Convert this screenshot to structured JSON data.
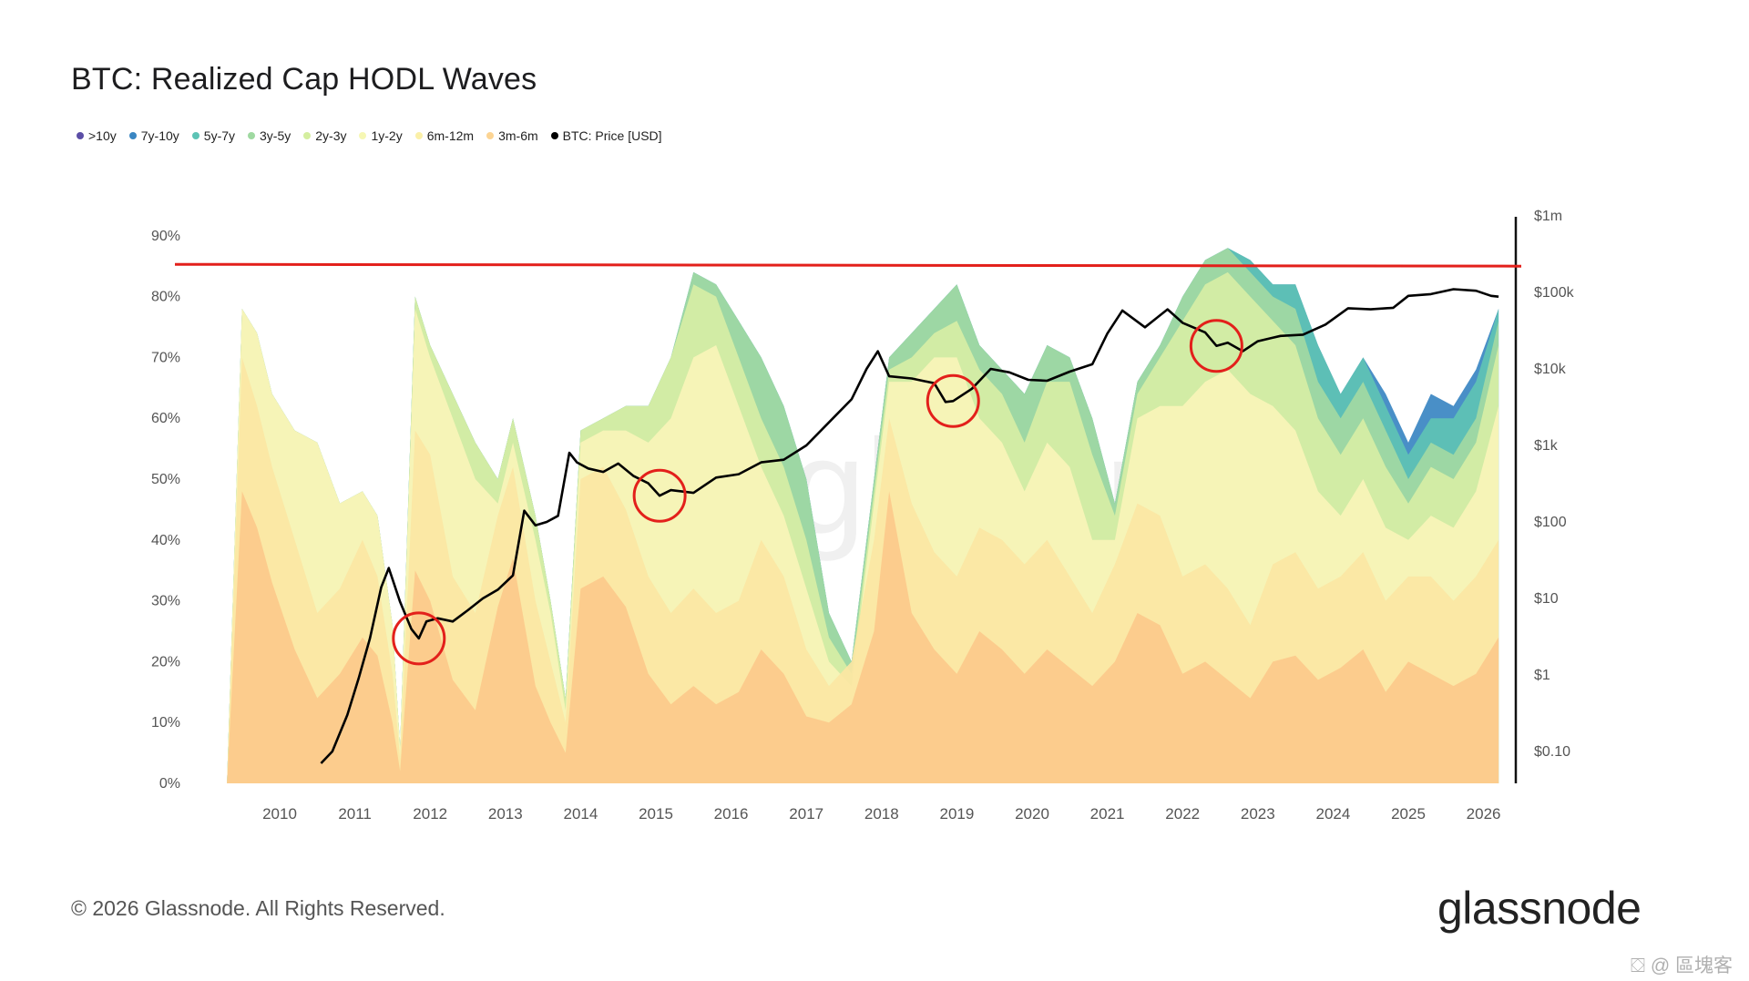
{
  "title": "BTC: Realized Cap HODL Waves",
  "footer": "© 2026 Glassnode. All Rights Reserved.",
  "brand": "glassnode",
  "background_watermark": "glassnode",
  "corner_watermark": "⛋ @ 區塊客",
  "chart_data": {
    "type": "area",
    "title": "BTC: Realized Cap HODL Waves",
    "legend": [
      {
        "name": ">10y",
        "color": "#5b4ea6"
      },
      {
        "name": "7y-10y",
        "color": "#3a86c2"
      },
      {
        "name": "5y-7y",
        "color": "#5cc3b5"
      },
      {
        "name": "3y-5y",
        "color": "#9fd9a1"
      },
      {
        "name": "2y-3y",
        "color": "#d4ee9f"
      },
      {
        "name": "1y-2y",
        "color": "#f6f7b4"
      },
      {
        "name": "6m-12m",
        "color": "#fbf0a8"
      },
      {
        "name": "3m-6m",
        "color": "#fcd493"
      },
      {
        "name": "BTC: Price [USD]",
        "color": "#000000"
      }
    ],
    "legend_placement": "top-left",
    "x_ticks": [
      "2010",
      "2011",
      "2012",
      "2013",
      "2014",
      "2015",
      "2016",
      "2017",
      "2018",
      "2019",
      "2020",
      "2021",
      "2022",
      "2023",
      "2024",
      "2025",
      "2026"
    ],
    "y_left_ticks": [
      "0%",
      "10%",
      "20%",
      "30%",
      "40%",
      "50%",
      "60%",
      "70%",
      "80%",
      "90%"
    ],
    "y_left_range": [
      0,
      90
    ],
    "y_right_ticks": [
      "$0.10",
      "$1",
      "$10",
      "$100",
      "$1k",
      "$10k",
      "$100k",
      "$1m"
    ],
    "y_right_range_log10": [
      -1,
      6
    ],
    "y_right_scale": "log",
    "reference_line_pct": 85,
    "circle_annotations_years": [
      2011.85,
      2015.05,
      2018.95,
      2022.45
    ],
    "series": [
      {
        "name": "3m-6m",
        "color": "#fcc98b",
        "x": [
          2009.3,
          2009.5,
          2009.7,
          2009.9,
          2010.2,
          2010.5,
          2010.8,
          2011.1,
          2011.3,
          2011.5,
          2011.6,
          2011.8,
          2012.0,
          2012.3,
          2012.6,
          2012.9,
          2013.1,
          2013.4,
          2013.6,
          2013.8,
          2014.0,
          2014.3,
          2014.6,
          2014.9,
          2015.2,
          2015.5,
          2015.8,
          2016.1,
          2016.4,
          2016.7,
          2017.0,
          2017.3,
          2017.6,
          2017.9,
          2018.1,
          2018.4,
          2018.7,
          2019.0,
          2019.3,
          2019.6,
          2019.9,
          2020.2,
          2020.5,
          2020.8,
          2021.1,
          2021.4,
          2021.7,
          2022.0,
          2022.3,
          2022.6,
          2022.9,
          2023.2,
          2023.5,
          2023.8,
          2024.1,
          2024.4,
          2024.7,
          2025.0,
          2025.3,
          2025.6,
          2025.9,
          2026.2
        ],
        "values": [
          0,
          48,
          42,
          33,
          22,
          14,
          18,
          24,
          21,
          10,
          2,
          35,
          30,
          17,
          12,
          29,
          37,
          16,
          10,
          5,
          32,
          34,
          29,
          18,
          13,
          16,
          13,
          15,
          22,
          18,
          11,
          10,
          13,
          25,
          48,
          28,
          22,
          18,
          25,
          22,
          18,
          22,
          19,
          16,
          20,
          28,
          26,
          18,
          20,
          17,
          14,
          20,
          21,
          17,
          19,
          22,
          15,
          20,
          18,
          16,
          18,
          24
        ]
      },
      {
        "name": "6m-12m",
        "color": "#fbe6a3",
        "x": [
          2009.3,
          2009.5,
          2009.7,
          2009.9,
          2010.2,
          2010.5,
          2010.8,
          2011.1,
          2011.3,
          2011.5,
          2011.6,
          2011.8,
          2012.0,
          2012.3,
          2012.6,
          2012.9,
          2013.1,
          2013.4,
          2013.6,
          2013.8,
          2014.0,
          2014.3,
          2014.6,
          2014.9,
          2015.2,
          2015.5,
          2015.8,
          2016.1,
          2016.4,
          2016.7,
          2017.0,
          2017.3,
          2017.6,
          2017.9,
          2018.1,
          2018.4,
          2018.7,
          2019.0,
          2019.3,
          2019.6,
          2019.9,
          2020.2,
          2020.5,
          2020.8,
          2021.1,
          2021.4,
          2021.7,
          2022.0,
          2022.3,
          2022.6,
          2022.9,
          2023.2,
          2023.5,
          2023.8,
          2024.1,
          2024.4,
          2024.7,
          2025.0,
          2025.3,
          2025.6,
          2025.9,
          2026.2
        ],
        "values": [
          0,
          70,
          62,
          52,
          40,
          28,
          32,
          40,
          34,
          18,
          4,
          58,
          54,
          34,
          28,
          44,
          52,
          30,
          20,
          10,
          50,
          52,
          45,
          34,
          28,
          32,
          28,
          30,
          40,
          34,
          22,
          16,
          20,
          40,
          60,
          46,
          38,
          34,
          42,
          40,
          36,
          40,
          34,
          28,
          36,
          46,
          44,
          34,
          36,
          32,
          26,
          36,
          38,
          32,
          34,
          38,
          30,
          34,
          34,
          30,
          34,
          40
        ]
      },
      {
        "name": "1y-2y",
        "color": "#f8f4b8",
        "x": [
          2009.3,
          2009.5,
          2009.7,
          2009.9,
          2010.2,
          2010.5,
          2010.8,
          2011.1,
          2011.3,
          2011.5,
          2011.6,
          2011.8,
          2012.0,
          2012.3,
          2012.6,
          2012.9,
          2013.1,
          2013.4,
          2013.6,
          2013.8,
          2014.0,
          2014.3,
          2014.6,
          2014.9,
          2015.2,
          2015.5,
          2015.8,
          2016.1,
          2016.4,
          2016.7,
          2017.0,
          2017.3,
          2017.6,
          2017.9,
          2018.1,
          2018.4,
          2018.7,
          2019.0,
          2019.3,
          2019.6,
          2019.9,
          2020.2,
          2020.5,
          2020.8,
          2021.1,
          2021.4,
          2021.7,
          2022.0,
          2022.3,
          2022.6,
          2022.9,
          2023.2,
          2023.5,
          2023.8,
          2024.1,
          2024.4,
          2024.7,
          2025.0,
          2025.3,
          2025.6,
          2025.9,
          2026.2
        ],
        "values": [
          0,
          78,
          74,
          64,
          58,
          56,
          46,
          48,
          44,
          26,
          6,
          78,
          70,
          60,
          50,
          46,
          56,
          40,
          28,
          12,
          56,
          58,
          58,
          56,
          60,
          70,
          72,
          62,
          52,
          44,
          32,
          20,
          16,
          46,
          66,
          66,
          70,
          70,
          60,
          56,
          48,
          56,
          52,
          40,
          40,
          60,
          62,
          62,
          66,
          68,
          64,
          62,
          58,
          48,
          44,
          50,
          42,
          40,
          44,
          42,
          48,
          62
        ]
      },
      {
        "name": "2y-3y",
        "color": "#d7eea5",
        "x": [
          2009.3,
          2009.5,
          2009.7,
          2009.9,
          2010.2,
          2010.5,
          2010.8,
          2011.1,
          2011.3,
          2011.5,
          2011.6,
          2011.8,
          2012.0,
          2012.3,
          2012.6,
          2012.9,
          2013.1,
          2013.4,
          2013.6,
          2013.8,
          2014.0,
          2014.3,
          2014.6,
          2014.9,
          2015.2,
          2015.5,
          2015.8,
          2016.1,
          2016.4,
          2016.7,
          2017.0,
          2017.3,
          2017.6,
          2017.9,
          2018.1,
          2018.4,
          2018.7,
          2019.0,
          2019.3,
          2019.6,
          2019.9,
          2020.2,
          2020.5,
          2020.8,
          2021.1,
          2021.4,
          2021.7,
          2022.0,
          2022.3,
          2022.6,
          2022.9,
          2023.2,
          2023.5,
          2023.8,
          2024.1,
          2024.4,
          2024.7,
          2025.0,
          2025.3,
          2025.6,
          2025.9,
          2026.2
        ],
        "values": [
          0,
          78,
          74,
          64,
          58,
          56,
          46,
          48,
          44,
          26,
          6,
          80,
          72,
          64,
          56,
          50,
          60,
          44,
          30,
          14,
          58,
          60,
          62,
          62,
          70,
          82,
          80,
          70,
          60,
          52,
          40,
          24,
          18,
          48,
          68,
          70,
          74,
          76,
          68,
          64,
          56,
          66,
          66,
          54,
          44,
          64,
          70,
          76,
          82,
          84,
          80,
          76,
          72,
          60,
          54,
          60,
          52,
          46,
          52,
          50,
          56,
          72
        ]
      },
      {
        "name": "3y-5y",
        "color": "#a3d9a3",
        "x": [
          2009.3,
          2009.5,
          2009.7,
          2009.9,
          2010.2,
          2010.5,
          2010.8,
          2011.1,
          2011.3,
          2011.5,
          2011.6,
          2011.8,
          2012.0,
          2012.3,
          2012.6,
          2012.9,
          2013.1,
          2013.4,
          2013.6,
          2013.8,
          2014.0,
          2014.3,
          2014.6,
          2014.9,
          2015.2,
          2015.5,
          2015.8,
          2016.1,
          2016.4,
          2016.7,
          2017.0,
          2017.3,
          2017.6,
          2017.9,
          2018.1,
          2018.4,
          2018.7,
          2019.0,
          2019.3,
          2019.6,
          2019.9,
          2020.2,
          2020.5,
          2020.8,
          2021.1,
          2021.4,
          2021.7,
          2022.0,
          2022.3,
          2022.6,
          2022.9,
          2023.2,
          2023.5,
          2023.8,
          2024.1,
          2024.4,
          2024.7,
          2025.0,
          2025.3,
          2025.6,
          2025.9,
          2026.2
        ],
        "values": [
          0,
          78,
          74,
          64,
          58,
          56,
          46,
          48,
          44,
          26,
          6,
          80,
          72,
          64,
          56,
          50,
          60,
          44,
          30,
          14,
          58,
          60,
          62,
          62,
          70,
          84,
          82,
          76,
          70,
          62,
          50,
          28,
          20,
          50,
          70,
          74,
          78,
          82,
          72,
          68,
          64,
          72,
          70,
          60,
          46,
          66,
          72,
          80,
          86,
          88,
          84,
          80,
          78,
          66,
          60,
          66,
          58,
          50,
          56,
          54,
          60,
          76
        ]
      },
      {
        "name": "5y-7y",
        "color": "#5fc3b4",
        "x": [
          2009.3,
          2009.5,
          2009.7,
          2009.9,
          2010.2,
          2010.5,
          2010.8,
          2011.1,
          2011.3,
          2011.5,
          2011.6,
          2011.8,
          2012.0,
          2012.3,
          2012.6,
          2012.9,
          2013.1,
          2013.4,
          2013.6,
          2013.8,
          2014.0,
          2014.3,
          2014.6,
          2014.9,
          2015.2,
          2015.5,
          2015.8,
          2016.1,
          2016.4,
          2016.7,
          2017.0,
          2017.3,
          2017.6,
          2017.9,
          2018.1,
          2018.4,
          2018.7,
          2019.0,
          2019.3,
          2019.6,
          2019.9,
          2020.2,
          2020.5,
          2020.8,
          2021.1,
          2021.4,
          2021.7,
          2022.0,
          2022.3,
          2022.6,
          2022.9,
          2023.2,
          2023.5,
          2023.8,
          2024.1,
          2024.4,
          2024.7,
          2025.0,
          2025.3,
          2025.6,
          2025.9,
          2026.2
        ],
        "values": [
          0,
          78,
          74,
          64,
          58,
          56,
          46,
          48,
          44,
          26,
          6,
          80,
          72,
          64,
          56,
          50,
          60,
          44,
          30,
          14,
          58,
          60,
          62,
          62,
          70,
          84,
          82,
          76,
          70,
          62,
          50,
          28,
          20,
          50,
          70,
          74,
          78,
          82,
          72,
          68,
          64,
          72,
          70,
          60,
          46,
          66,
          72,
          80,
          86,
          88,
          86,
          82,
          82,
          72,
          64,
          70,
          62,
          54,
          60,
          60,
          66,
          78
        ]
      },
      {
        "name": "7y-10y",
        "color": "#3a86c2",
        "x": [
          2009.3,
          2009.5,
          2009.7,
          2009.9,
          2010.2,
          2010.5,
          2010.8,
          2011.1,
          2011.3,
          2011.5,
          2011.6,
          2011.8,
          2012.0,
          2012.3,
          2012.6,
          2012.9,
          2013.1,
          2013.4,
          2013.6,
          2013.8,
          2014.0,
          2014.3,
          2014.6,
          2014.9,
          2015.2,
          2015.5,
          2015.8,
          2016.1,
          2016.4,
          2016.7,
          2017.0,
          2017.3,
          2017.6,
          2017.9,
          2018.1,
          2018.4,
          2018.7,
          2019.0,
          2019.3,
          2019.6,
          2019.9,
          2020.2,
          2020.5,
          2020.8,
          2021.1,
          2021.4,
          2021.7,
          2022.0,
          2022.3,
          2022.6,
          2022.9,
          2023.2,
          2023.5,
          2023.8,
          2024.1,
          2024.4,
          2024.7,
          2025.0,
          2025.3,
          2025.6,
          2025.9,
          2026.2
        ],
        "values": [
          0,
          78,
          74,
          64,
          58,
          56,
          46,
          48,
          44,
          26,
          6,
          80,
          72,
          64,
          56,
          50,
          60,
          44,
          30,
          14,
          58,
          60,
          62,
          62,
          70,
          84,
          82,
          76,
          70,
          62,
          50,
          28,
          20,
          50,
          70,
          74,
          78,
          82,
          72,
          68,
          64,
          72,
          70,
          60,
          46,
          66,
          72,
          80,
          86,
          88,
          86,
          82,
          82,
          72,
          64,
          70,
          64,
          56,
          64,
          62,
          68,
          78
        ]
      }
    ],
    "price": {
      "name": "BTC: Price [USD]",
      "x": [
        2010.55,
        2010.7,
        2010.9,
        2011.05,
        2011.2,
        2011.35,
        2011.45,
        2011.6,
        2011.75,
        2011.85,
        2011.95,
        2012.1,
        2012.3,
        2012.5,
        2012.7,
        2012.9,
        2013.1,
        2013.25,
        2013.4,
        2013.55,
        2013.7,
        2013.85,
        2013.95,
        2014.1,
        2014.3,
        2014.5,
        2014.7,
        2014.9,
        2015.05,
        2015.2,
        2015.5,
        2015.8,
        2016.1,
        2016.4,
        2016.7,
        2017.0,
        2017.3,
        2017.6,
        2017.8,
        2017.95,
        2018.1,
        2018.4,
        2018.7,
        2018.85,
        2018.95,
        2019.2,
        2019.45,
        2019.7,
        2019.95,
        2020.2,
        2020.5,
        2020.8,
        2021.0,
        2021.2,
        2021.5,
        2021.8,
        2022.0,
        2022.3,
        2022.45,
        2022.6,
        2022.8,
        2023.0,
        2023.3,
        2023.6,
        2023.9,
        2024.2,
        2024.5,
        2024.8,
        2025.0,
        2025.3,
        2025.6,
        2025.9,
        2026.1,
        2026.2
      ],
      "values": [
        0.07,
        0.1,
        0.3,
        0.9,
        3,
        14,
        25,
        9,
        4,
        3,
        5,
        5.5,
        5,
        7,
        10,
        13,
        20,
        140,
        90,
        100,
        120,
        800,
        600,
        500,
        450,
        580,
        400,
        320,
        220,
        260,
        240,
        380,
        420,
        600,
        650,
        1000,
        2000,
        4000,
        10000,
        17000,
        8000,
        7500,
        6500,
        3700,
        3800,
        5500,
        10000,
        9000,
        7200,
        7000,
        9200,
        11500,
        29000,
        58000,
        35000,
        60000,
        40000,
        30000,
        20000,
        22000,
        17000,
        23000,
        27000,
        28000,
        38000,
        62000,
        60000,
        63000,
        90000,
        95000,
        110000,
        105000,
        90000,
        88000
      ]
    }
  }
}
